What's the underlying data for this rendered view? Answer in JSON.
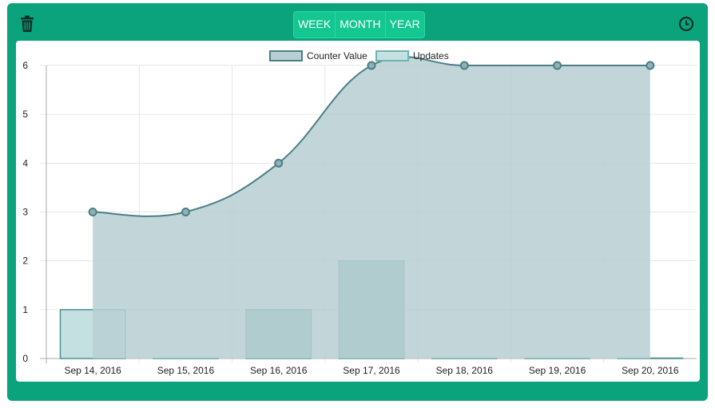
{
  "header": {
    "ranges": [
      "WEEK",
      "MONTH",
      "YEAR"
    ],
    "trash_icon": "trash-icon",
    "history_icon": "clock-icon"
  },
  "colors": {
    "card": "#0aa37c",
    "area_fill": "#b7cfd2",
    "line": "#4a7f86",
    "bar_fill": "#8db8b8",
    "bar_stroke": "#4f9490",
    "legend_updates_fill": "#c5e0e0",
    "legend_updates_stroke": "#6fb3b0"
  },
  "chart_data": {
    "type": "line",
    "categories": [
      "Sep 14, 2016",
      "Sep 15, 2016",
      "Sep 16, 2016",
      "Sep 17, 2016",
      "Sep 18, 2016",
      "Sep 19, 2016",
      "Sep 20, 2016"
    ],
    "series": [
      {
        "name": "Counter Value",
        "type": "area",
        "values": [
          3,
          3,
          4,
          6,
          6,
          6,
          6
        ]
      },
      {
        "name": "Updates",
        "type": "bar",
        "values": [
          1,
          0,
          1,
          2,
          0,
          0,
          0
        ]
      }
    ],
    "yticks": [
      "0",
      "1",
      "2",
      "3",
      "4",
      "5",
      "6"
    ],
    "ylim": [
      0,
      6
    ],
    "grid": true,
    "legend": "top-center"
  }
}
